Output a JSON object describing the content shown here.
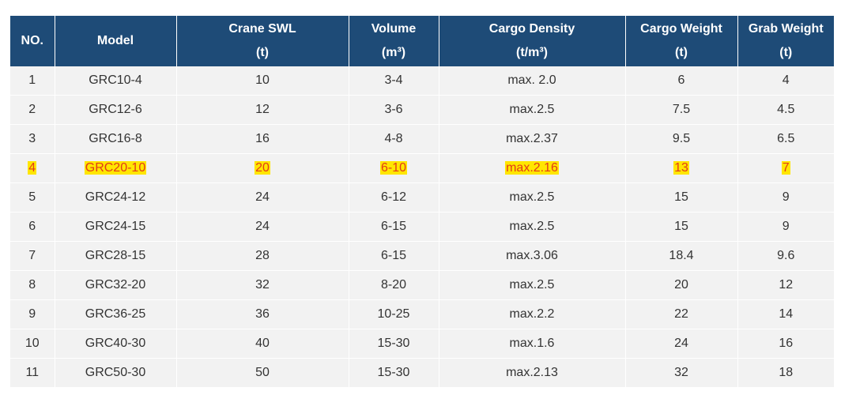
{
  "table": {
    "headers": [
      {
        "line1": "NO.",
        "line2": ""
      },
      {
        "line1": "Model",
        "line2": ""
      },
      {
        "line1": "Crane SWL",
        "line2": "(t)"
      },
      {
        "line1": "Volume",
        "line2": "(m³)"
      },
      {
        "line1": "Cargo Density",
        "line2": "(t/m³)"
      },
      {
        "line1": "Cargo Weight",
        "line2": "(t)"
      },
      {
        "line1": "Grab Weight",
        "line2": "(t)"
      }
    ],
    "rows": [
      {
        "highlight": false,
        "cells": [
          "1",
          "GRC10-4",
          "10",
          "3-4",
          "max. 2.0",
          "6",
          "4"
        ]
      },
      {
        "highlight": false,
        "cells": [
          "2",
          "GRC12-6",
          "12",
          "3-6",
          "max.2.5",
          "7.5",
          "4.5"
        ]
      },
      {
        "highlight": false,
        "cells": [
          "3",
          "GRC16-8",
          "16",
          "4-8",
          "max.2.37",
          "9.5",
          "6.5"
        ]
      },
      {
        "highlight": true,
        "cells": [
          "4",
          "GRC20-10",
          "20",
          "6-10",
          "max.2.16",
          "13",
          "7"
        ]
      },
      {
        "highlight": false,
        "cells": [
          "5",
          "GRC24-12",
          "24",
          "6-12",
          "max.2.5",
          "15",
          "9"
        ]
      },
      {
        "highlight": false,
        "cells": [
          "6",
          "GRC24-15",
          "24",
          "6-15",
          "max.2.5",
          "15",
          "9"
        ]
      },
      {
        "highlight": false,
        "cells": [
          "7",
          "GRC28-15",
          "28",
          "6-15",
          "max.3.06",
          "18.4",
          "9.6"
        ]
      },
      {
        "highlight": false,
        "cells": [
          "8",
          "GRC32-20",
          "32",
          "8-20",
          "max.2.5",
          "20",
          "12"
        ]
      },
      {
        "highlight": false,
        "cells": [
          "9",
          "GRC36-25",
          "36",
          "10-25",
          "max.2.2",
          "22",
          "14"
        ]
      },
      {
        "highlight": false,
        "cells": [
          "10",
          "GRC40-30",
          "40",
          "15-30",
          "max.1.6",
          "24",
          "16"
        ]
      },
      {
        "highlight": false,
        "cells": [
          "11",
          "GRC50-30",
          "50",
          "15-30",
          "max.2.13",
          "32",
          "18"
        ]
      }
    ]
  },
  "colors": {
    "header_bg": "#1e4b77",
    "row_bg": "#f2f2f2",
    "highlight_bg": "#ffe600",
    "highlight_text": "#e23a1a"
  }
}
